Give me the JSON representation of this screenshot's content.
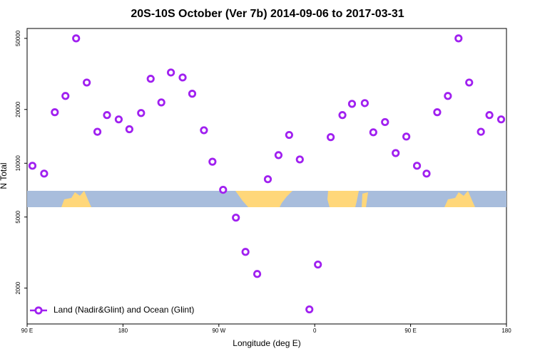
{
  "chart_data": {
    "type": "scatter",
    "title": "20S-10S October (Ver 7b)   2014-09-06 to 2017-03-31",
    "x_label": "Longitude (deg E)",
    "y_label": "N Total",
    "xlim": [
      90,
      540
    ],
    "xticks": [
      {
        "value": 90,
        "label": "90 E"
      },
      180,
      {
        "value": 270,
        "label": "90 W"
      },
      {
        "value": 360,
        "label": "0"
      },
      {
        "value": 450,
        "label": "90 E"
      },
      {
        "value": 540,
        "label": "180"
      }
    ],
    "ylim": [
      1260,
      56800
    ],
    "log_y": true,
    "yticks": [
      2000,
      5000,
      10000,
      20000,
      50000
    ],
    "legend": "bottom-left",
    "series": [
      {
        "name": "Land (Nadir&Glint) and Ocean (Glint)",
        "color": "#a020f0",
        "x": [
          95,
          106,
          116,
          126,
          136,
          146,
          156,
          165,
          176,
          186,
          197,
          206,
          216,
          225,
          236,
          245,
          256,
          264,
          274,
          286,
          295,
          306,
          316,
          326,
          336,
          346,
          355,
          363,
          375,
          386,
          395,
          407,
          415,
          426,
          436,
          446,
          456,
          465,
          475,
          485,
          495,
          505,
          516,
          524,
          535
        ],
        "values": [
          9680,
          8750,
          19300,
          23800,
          50000,
          28300,
          15000,
          18600,
          17600,
          15500,
          19100,
          29700,
          21900,
          32200,
          30200,
          24500,
          15300,
          10200,
          7100,
          4960,
          3190,
          2400,
          8140,
          11100,
          14400,
          10500,
          1520,
          2710,
          14000,
          18600,
          21500,
          21700,
          14900,
          17000,
          11400,
          14100,
          9680,
          8750,
          19300,
          23800,
          50000,
          28300,
          15000,
          18600,
          17600
        ]
      }
    ]
  }
}
